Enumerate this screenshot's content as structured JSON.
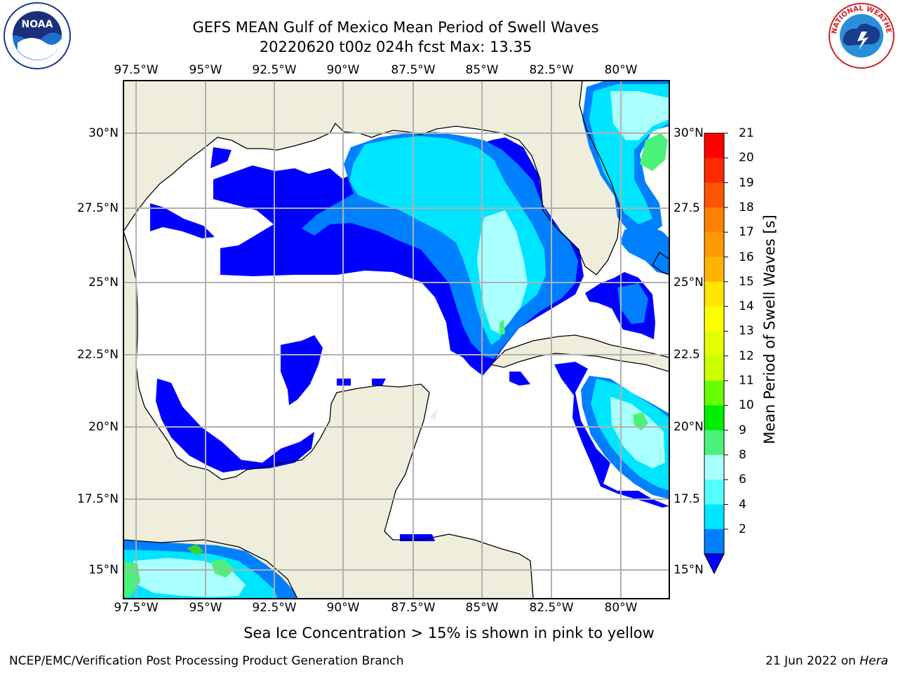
{
  "header": {
    "title": "GEFS MEAN Gulf of Mexico Mean Period of Swell Waves",
    "subtitle": "20220620 t00z 024h fcst   Max: 13.35"
  },
  "logos": {
    "left": "NOAA",
    "right": "NATIONAL WEATHER SERVICE"
  },
  "map": {
    "lon_labels": [
      "97.5°W",
      "95°W",
      "92.5°W",
      "90°W",
      "87.5°W",
      "85°W",
      "82.5°W",
      "80°W"
    ],
    "lat_labels_left": [
      "30°N",
      "27.5°N",
      "25°N",
      "22.5°N",
      "20°N",
      "17.5°N",
      "15°N"
    ],
    "lat_labels_right": [
      "30°N",
      "27.5",
      "25°N",
      "22.5",
      "20°N",
      "17.5",
      "15°N"
    ],
    "land_color": "#efeedd",
    "water_color": "#ffffff",
    "grid_color": "#b0b0b0"
  },
  "colorbar": {
    "label": "Mean Period of Swell Waves [s]",
    "ticks": [
      "21",
      "20",
      "19",
      "18",
      "17",
      "16",
      "15",
      "14",
      "13",
      "12",
      "11",
      "10",
      "9",
      "8",
      "6",
      "4",
      "2"
    ],
    "colors": [
      "#ff0000",
      "#ff2a00",
      "#ff5500",
      "#ff7f00",
      "#ff9900",
      "#ffb300",
      "#ffe600",
      "#fdff00",
      "#e6ff00",
      "#ccff00",
      "#66ff00",
      "#00ee00",
      "#4bf27a",
      "#aaffff",
      "#55ffff",
      "#00e5ff",
      "#0080ff"
    ],
    "extend_color": "#0000ff"
  },
  "note": "Sea Ice Concentration > 15% is shown in pink to yellow",
  "footer": {
    "left": "NCEP/EMC/Verification Post Processing Product Generation Branch",
    "right_prefix": "21 Jun 2022 on ",
    "right_machine": "Hera"
  }
}
